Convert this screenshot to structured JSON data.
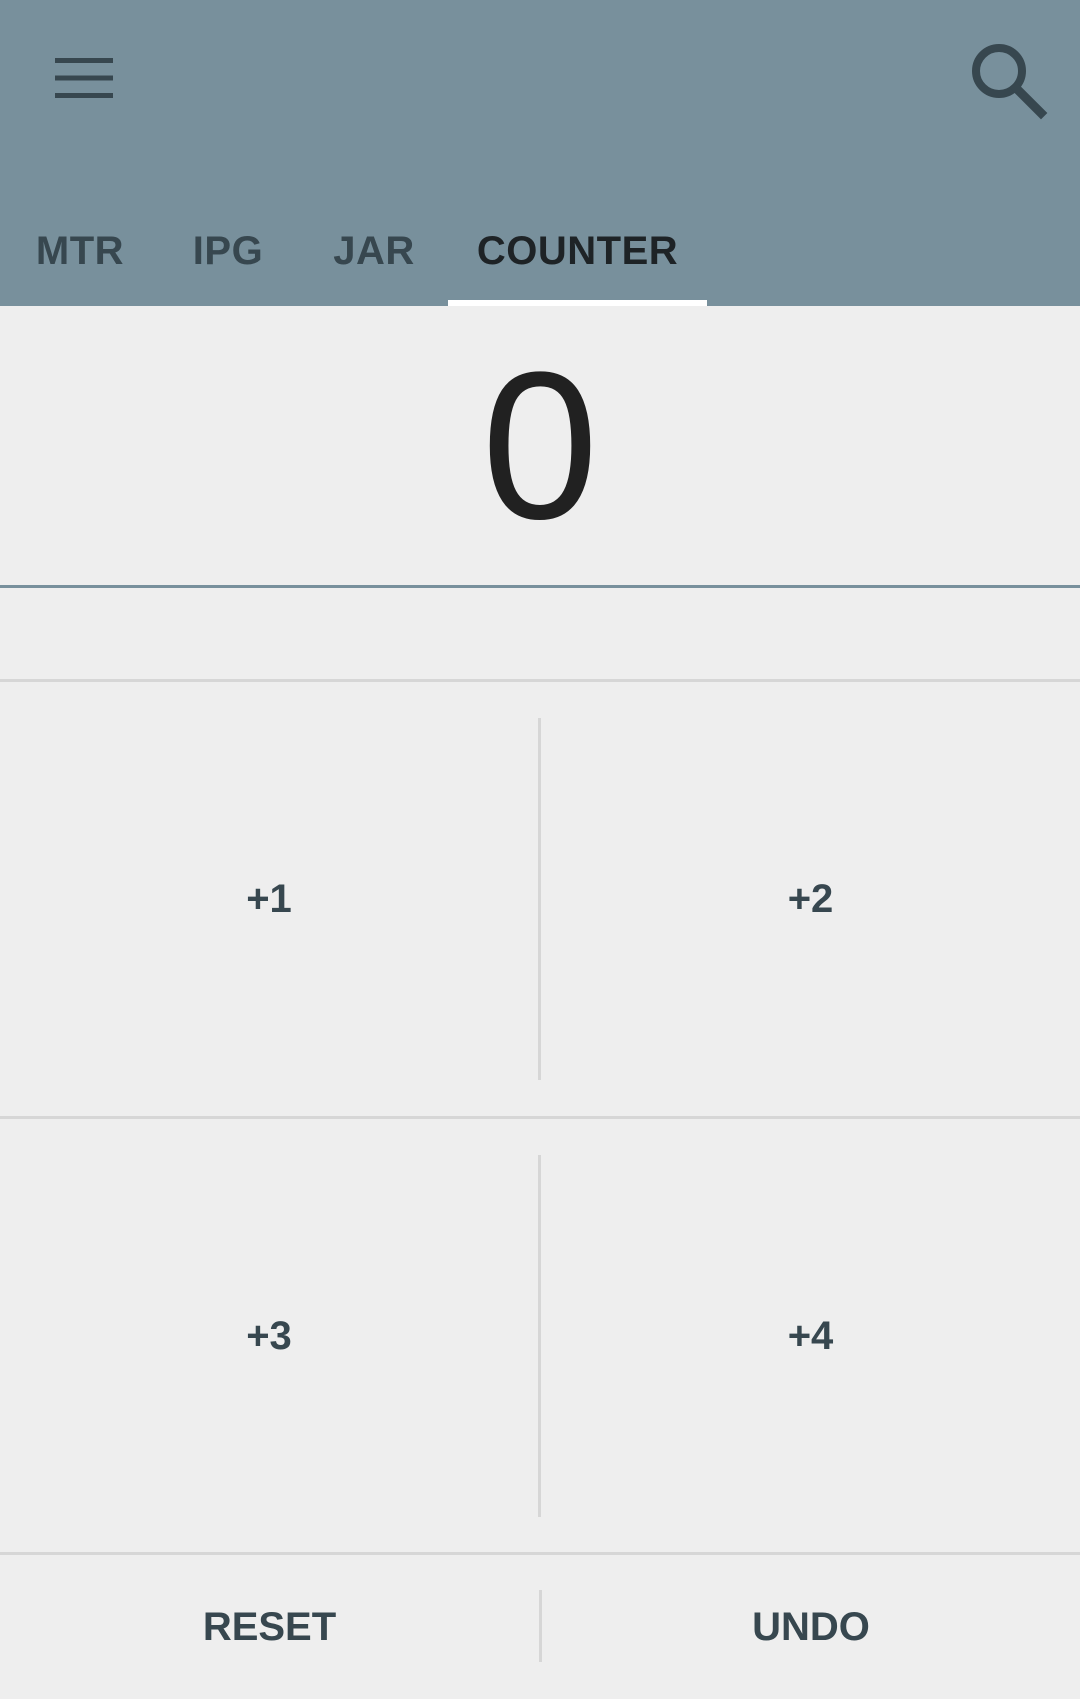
{
  "toolbar": {
    "menu_icon": "hamburger-menu-icon",
    "search_icon": "search-icon"
  },
  "tabs": [
    {
      "label": "MTR",
      "active": false
    },
    {
      "label": "IPG",
      "active": false
    },
    {
      "label": "JAR",
      "active": false
    },
    {
      "label": "COUNTER",
      "active": true
    }
  ],
  "counter": {
    "value": "0"
  },
  "increment_buttons": [
    {
      "label": "+1"
    },
    {
      "label": "+2"
    },
    {
      "label": "+3"
    },
    {
      "label": "+4"
    }
  ],
  "actions": {
    "reset_label": "RESET",
    "undo_label": "UNDO"
  },
  "colors": {
    "appbar": "#78909c",
    "background": "#eeeeee",
    "text_dark": "#37474f",
    "divider": "#d6d6d6"
  }
}
